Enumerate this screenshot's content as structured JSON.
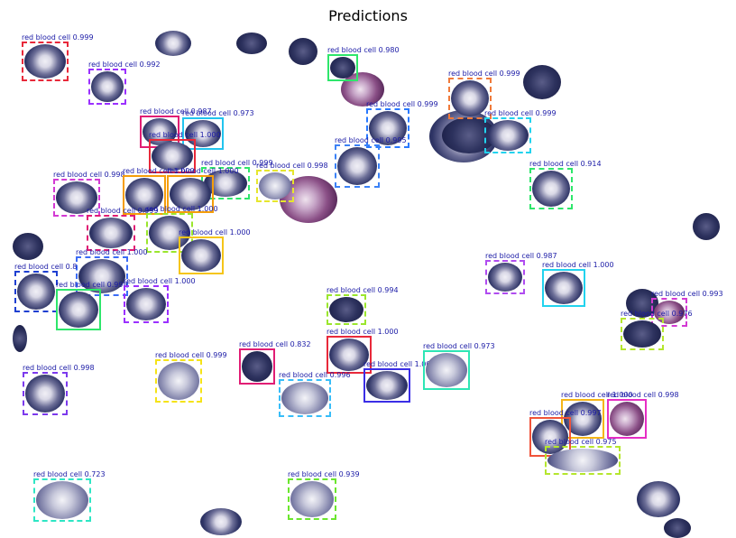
{
  "title": "Predictions",
  "detections": [
    {
      "label": "red blood cell 0.999",
      "color": "#e8293a"
    },
    {
      "label": "red blood cell 0.992",
      "color": "#9b30ff"
    },
    {
      "label": "red blood cell 0.980",
      "color": "#2ee66b"
    },
    {
      "label": "red blood cell 0.999",
      "color": "#f07a3a"
    },
    {
      "label": "red blood cell 0.999",
      "color": "#2979ff"
    },
    {
      "label": "red blood cell 0.999",
      "color": "#22d3ee"
    },
    {
      "label": "red blood cell 0.987",
      "color": "#e11d74"
    },
    {
      "label": "red blood cell 0.973",
      "color": "#22c4ee"
    },
    {
      "label": "red blood cell 1.000",
      "color": "#e8293a"
    },
    {
      "label": "red blood cell 0.995",
      "color": "#3b82f6"
    },
    {
      "label": "red blood cell 0.999",
      "color": "#2ee66b"
    },
    {
      "label": "red blood cell 0.998",
      "color": "#e6e62e"
    },
    {
      "label": "red blood cell 0.914",
      "color": "#2ee66b"
    },
    {
      "label": "red blood cell 0.998",
      "color": "#d33ad3"
    },
    {
      "label": "red blood cell 1.000",
      "color": "#f59e0b"
    },
    {
      "label": "red blood cell 1.000",
      "color": "#f59e0b"
    },
    {
      "label": "red blood cell 0.999",
      "color": "#e11d74"
    },
    {
      "label": "red blood cell 1.000",
      "color": "#9be62e"
    },
    {
      "label": "red blood cell 1.000",
      "color": "#f5c518"
    },
    {
      "label": "red blood cell 1.000",
      "color": "#3b6cf6"
    },
    {
      "label": "red blood cell 0.8",
      "color": "#1e3fd1"
    },
    {
      "label": "red blood cell 0.998",
      "color": "#2ee66b"
    },
    {
      "label": "red blood cell 1.000",
      "color": "#9b30ff"
    },
    {
      "label": "red blood cell 0.987",
      "color": "#b04cf0"
    },
    {
      "label": "red blood cell 1.000",
      "color": "#22d3ee"
    },
    {
      "label": "red blood cell 0.994",
      "color": "#9be62e"
    },
    {
      "label": "red blood cell 0.993",
      "color": "#d33ad3"
    },
    {
      "label": "red blood cell 0.976",
      "color": "#b5e62e"
    },
    {
      "label": "red blood cell 0.832",
      "color": "#e11d74"
    },
    {
      "label": "red blood cell 1.000",
      "color": "#e8293a"
    },
    {
      "label": "red blood cell 0.999",
      "color": "#f5e318"
    },
    {
      "label": "red blood cell 0.998",
      "color": "#7c3aed"
    },
    {
      "label": "red blood cell 0.996",
      "color": "#38bdf8"
    },
    {
      "label": "red blood cell 1.000",
      "color": "#3b2ee6"
    },
    {
      "label": "red blood cell 0.973",
      "color": "#2ee6b5"
    },
    {
      "label": "red blood cell 1.000",
      "color": "#f5b518"
    },
    {
      "label": "red blood cell 0.998",
      "color": "#e62ec4"
    },
    {
      "label": "red blood cell 0.997",
      "color": "#f0533a"
    },
    {
      "label": "red blood cell 0.975",
      "color": "#b5e62e"
    },
    {
      "label": "red blood cell 0.723",
      "color": "#2ee6c4"
    },
    {
      "label": "red blood cell 0.939",
      "color": "#6be62e"
    }
  ]
}
